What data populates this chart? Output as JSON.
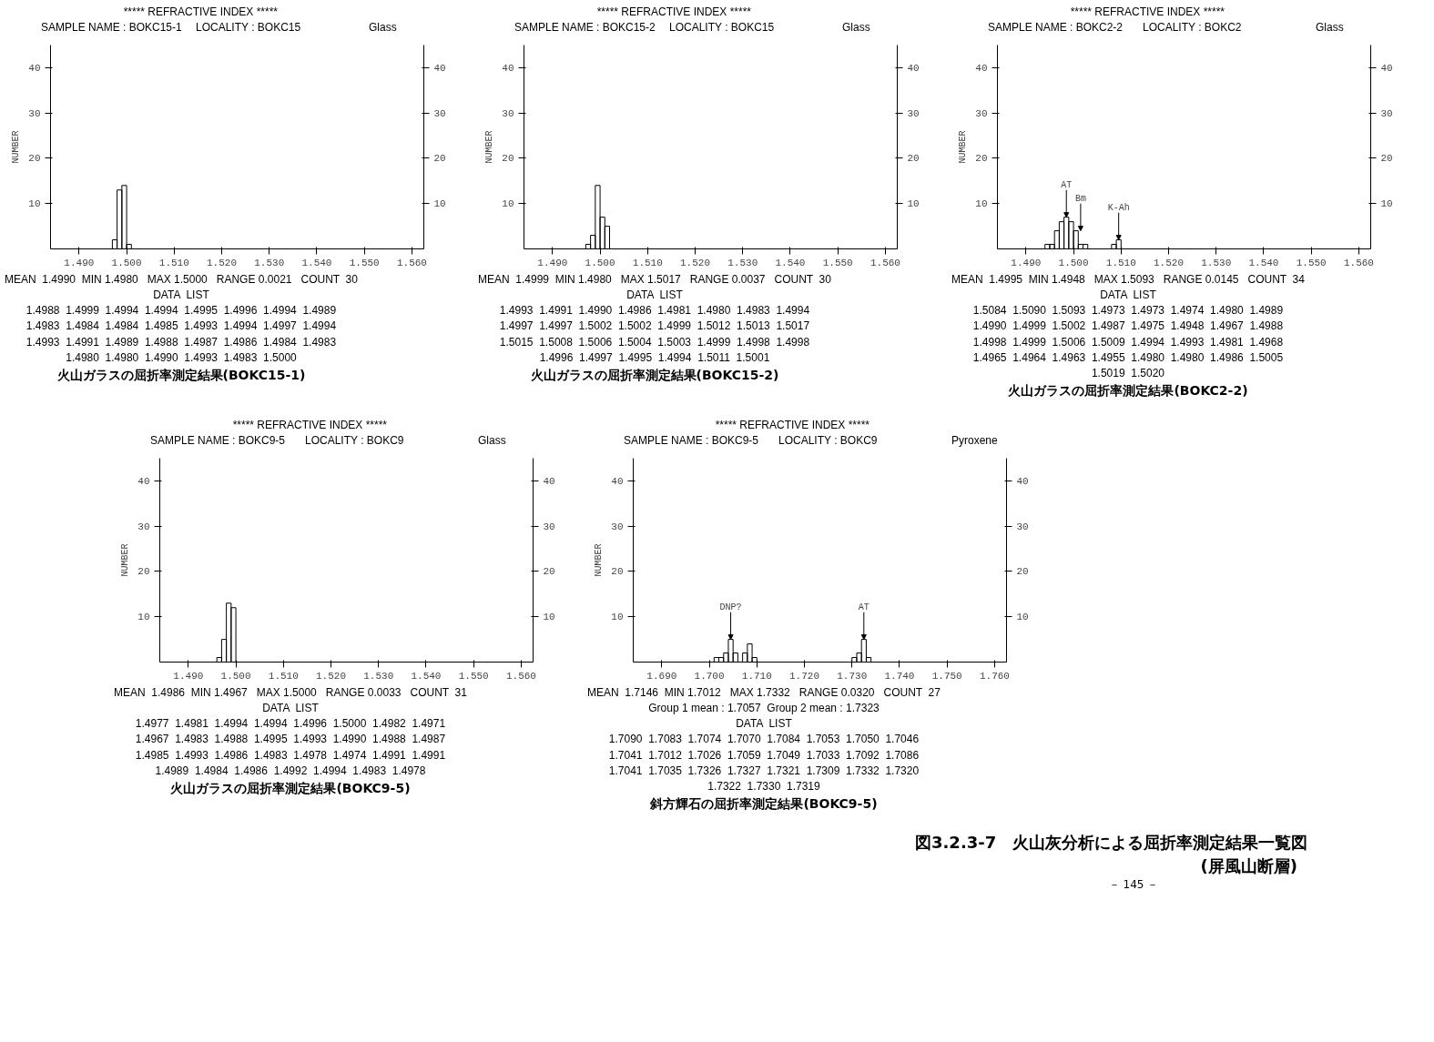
{
  "chart_data": [
    {
      "type": "histogram",
      "title": "***** REFRACTIVE INDEX *****",
      "ylabel": "NUMBER",
      "color": "#000000",
      "bins": [
        1.497,
        1.498,
        1.499,
        1.5,
        1.501
      ],
      "values": [
        2,
        13,
        14,
        1
      ],
      "xlim": [
        1.484,
        1.5625
      ],
      "xticks": [
        {
          "value": 1.49,
          "label": "1.490"
        },
        {
          "value": 1.5,
          "label": "1.500"
        },
        {
          "value": 1.51,
          "label": "1.510"
        },
        {
          "value": 1.52,
          "label": "1.520"
        },
        {
          "value": 1.53,
          "label": "1.530"
        },
        {
          "value": 1.54,
          "label": "1.540"
        },
        {
          "value": 1.55,
          "label": "1.550"
        },
        {
          "value": 1.56,
          "label": "1.560"
        }
      ],
      "ylim": [
        0,
        45
      ],
      "yticks": [
        10,
        20,
        30,
        40
      ],
      "y2lim": [
        0,
        45
      ],
      "y2ticks": [
        10,
        20,
        30,
        40
      ],
      "annotations": [
        "SAMPLE NAME : BOKC15-1",
        "LOCALITY : BOKC15",
        "Glass",
        "MEAN  1.4990  MIN 1.4980   MAX 1.5000   RANGE 0.0021   COUNT  30",
        "DATA  LIST",
        "1.4988  1.4999  1.4994  1.4994  1.4995  1.4996  1.4994  1.4989",
        "1.4983  1.4984  1.4984  1.4985  1.4993  1.4994  1.4997  1.4994",
        "1.4993  1.4991  1.4989  1.4988  1.4987  1.4986  1.4984  1.4983",
        "1.4980  1.4980  1.4990  1.4993  1.4983  1.5000",
        "火山ガラスの屈折率測定結果(BOKC15-1)"
      ]
    },
    {
      "type": "histogram",
      "title": "***** REFRACTIVE INDEX *****",
      "ylabel": "NUMBER",
      "color": "#000000",
      "bins": [
        1.497,
        1.498,
        1.499,
        1.5,
        1.501,
        1.502
      ],
      "values": [
        1,
        3,
        14,
        7,
        5
      ],
      "xlim": [
        1.484,
        1.5625
      ],
      "xticks": [
        {
          "value": 1.49,
          "label": "1.490"
        },
        {
          "value": 1.5,
          "label": "1.500"
        },
        {
          "value": 1.51,
          "label": "1.510"
        },
        {
          "value": 1.52,
          "label": "1.520"
        },
        {
          "value": 1.53,
          "label": "1.530"
        },
        {
          "value": 1.54,
          "label": "1.540"
        },
        {
          "value": 1.55,
          "label": "1.550"
        },
        {
          "value": 1.56,
          "label": "1.560"
        }
      ],
      "ylim": [
        0,
        45
      ],
      "yticks": [
        10,
        20,
        30,
        40
      ],
      "y2lim": [
        0,
        45
      ],
      "y2ticks": [
        10,
        20,
        30,
        40
      ],
      "annotations": [
        "SAMPLE NAME : BOKC15-2",
        "LOCALITY : BOKC15",
        "Glass",
        "MEAN  1.4999  MIN 1.4980   MAX 1.5017   RANGE 0.0037   COUNT  30",
        "DATA  LIST",
        "1.4993  1.4991  1.4990  1.4986  1.4981  1.4980  1.4983  1.4994",
        "1.4997  1.4997  1.5002  1.5002  1.4999  1.5012  1.5013  1.5017",
        "1.5015  1.5008  1.5006  1.5004  1.5003  1.4999  1.4998  1.4998",
        "1.4996  1.4997  1.4995  1.4994  1.5011  1.5001",
        "火山ガラスの屈折率測定結果(BOKC15-2)"
      ]
    },
    {
      "type": "histogram",
      "title": "***** REFRACTIVE INDEX *****",
      "ylabel": "NUMBER",
      "color": "#000000",
      "bins": [
        1.494,
        1.495,
        1.496,
        1.497,
        1.498,
        1.499,
        1.5,
        1.501,
        1.502,
        1.503,
        1.504,
        1.505,
        1.506,
        1.507,
        1.508,
        1.509,
        1.51
      ],
      "values": [
        1,
        1,
        4,
        6,
        7,
        6,
        4,
        1,
        1,
        0,
        0,
        0,
        0,
        0,
        1,
        2
      ],
      "xlim": [
        1.484,
        1.5625
      ],
      "xticks": [
        {
          "value": 1.49,
          "label": "1.490"
        },
        {
          "value": 1.5,
          "label": "1.500"
        },
        {
          "value": 1.51,
          "label": "1.510"
        },
        {
          "value": 1.52,
          "label": "1.520"
        },
        {
          "value": 1.53,
          "label": "1.530"
        },
        {
          "value": 1.54,
          "label": "1.540"
        },
        {
          "value": 1.55,
          "label": "1.550"
        },
        {
          "value": 1.56,
          "label": "1.560"
        }
      ],
      "ylim": [
        0,
        45
      ],
      "yticks": [
        10,
        20,
        30,
        40
      ],
      "y2lim": [
        0,
        45
      ],
      "y2ticks": [
        10,
        20,
        30,
        40
      ],
      "annotations": [
        "SAMPLE NAME : BOKC2-2",
        "LOCALITY : BOKC2",
        "Glass",
        {
          "text": "AT",
          "x": 1.4985,
          "y": 7
        },
        {
          "text": "Bm",
          "x": 1.5015,
          "y": 4
        },
        {
          "text": "K-Ah",
          "x": 1.5095,
          "y": 2
        },
        "MEAN  1.4995  MIN 1.4948   MAX 1.5093   RANGE 0.0145   COUNT  34",
        "DATA  LIST",
        "1.5084  1.5090  1.5093  1.4973  1.4973  1.4974  1.4980  1.4989",
        "1.4990  1.4999  1.5002  1.4987  1.4975  1.4948  1.4967  1.4988",
        "1.4998  1.4999  1.5006  1.5009  1.4994  1.4993  1.4981  1.4968",
        "1.4965  1.4964  1.4963  1.4955  1.4980  1.4980  1.4986  1.5005",
        "1.5019  1.5020",
        "火山ガラスの屈折率測定結果(BOKC2-2)"
      ]
    },
    {
      "type": "histogram",
      "title": "***** REFRACTIVE INDEX *****",
      "ylabel": "NUMBER",
      "color": "#000000",
      "bins": [
        1.496,
        1.497,
        1.498,
        1.499,
        1.5
      ],
      "values": [
        1,
        5,
        13,
        12
      ],
      "xlim": [
        1.484,
        1.5625
      ],
      "xticks": [
        {
          "value": 1.49,
          "label": "1.490"
        },
        {
          "value": 1.5,
          "label": "1.500"
        },
        {
          "value": 1.51,
          "label": "1.510"
        },
        {
          "value": 1.52,
          "label": "1.520"
        },
        {
          "value": 1.53,
          "label": "1.530"
        },
        {
          "value": 1.54,
          "label": "1.540"
        },
        {
          "value": 1.55,
          "label": "1.550"
        },
        {
          "value": 1.56,
          "label": "1.560"
        }
      ],
      "ylim": [
        0,
        45
      ],
      "yticks": [
        10,
        20,
        30,
        40
      ],
      "y2lim": [
        0,
        45
      ],
      "y2ticks": [
        10,
        20,
        30,
        40
      ],
      "annotations": [
        "SAMPLE NAME : BOKC9-5",
        "LOCALITY : BOKC9",
        "Glass",
        "MEAN  1.4986  MIN 1.4967   MAX 1.5000   RANGE 0.0033   COUNT  31",
        "DATA  LIST",
        "1.4977  1.4981  1.4994  1.4994  1.4996  1.5000  1.4982  1.4971",
        "1.4967  1.4983  1.4988  1.4995  1.4993  1.4990  1.4988  1.4987",
        "1.4985  1.4993  1.4986  1.4983  1.4978  1.4974  1.4991  1.4991",
        "1.4989  1.4984  1.4986  1.4992  1.4994  1.4983  1.4978",
        "火山ガラスの屈折率測定結果(BOKC9-5)"
      ]
    },
    {
      "type": "histogram",
      "title": "***** REFRACTIVE INDEX *****",
      "ylabel": "NUMBER",
      "color": "#000000",
      "bins": [
        1.701,
        1.702,
        1.703,
        1.704,
        1.705,
        1.706,
        1.707,
        1.708,
        1.709,
        1.71,
        1.711,
        1.712,
        1.713,
        1.714,
        1.715,
        1.716,
        1.717,
        1.718,
        1.719,
        1.72,
        1.721,
        1.722,
        1.723,
        1.724,
        1.725,
        1.726,
        1.727,
        1.728,
        1.729,
        1.73,
        1.731,
        1.732,
        1.733,
        1.734
      ],
      "values": [
        1,
        1,
        2,
        5,
        2,
        0,
        2,
        4,
        1,
        0,
        0,
        0,
        0,
        0,
        0,
        0,
        0,
        0,
        0,
        0,
        0,
        0,
        0,
        0,
        0,
        0,
        0,
        0,
        0,
        1,
        2,
        5,
        1
      ],
      "xlim": [
        1.684,
        1.7625
      ],
      "xticks": [
        {
          "value": 1.69,
          "label": "1.690"
        },
        {
          "value": 1.7,
          "label": "1.700"
        },
        {
          "value": 1.71,
          "label": "1.710"
        },
        {
          "value": 1.72,
          "label": "1.720"
        },
        {
          "value": 1.73,
          "label": "1.730"
        },
        {
          "value": 1.74,
          "label": "1.740"
        },
        {
          "value": 1.75,
          "label": "1.750"
        },
        {
          "value": 1.76,
          "label": "1.760"
        }
      ],
      "ylim": [
        0,
        45
      ],
      "yticks": [
        10,
        20,
        30,
        40
      ],
      "y2lim": [
        0,
        45
      ],
      "y2ticks": [
        10,
        20,
        30,
        40
      ],
      "annotations": [
        "SAMPLE NAME : BOKC9-5",
        "LOCALITY : BOKC9",
        "Pyroxene",
        {
          "text": "DNP?",
          "x": 1.7045,
          "y": 5
        },
        {
          "text": "AT",
          "x": 1.7325,
          "y": 5
        },
        "MEAN  1.7146  MIN 1.7012   MAX 1.7332   RANGE 0.0320   COUNT  27",
        "Group 1 mean : 1.7057  Group 2 mean : 1.7323",
        "DATA  LIST",
        "1.7090  1.7083  1.7074  1.7070  1.7084  1.7053  1.7050  1.7046",
        "1.7041  1.7012  1.7026  1.7059  1.7049  1.7033  1.7092  1.7086",
        "1.7041  1.7035  1.7326  1.7327  1.7321  1.7309  1.7332  1.7320",
        "1.7322  1.7330  1.7319",
        "斜方輝石の屈折率測定結果(BOKC9-5)"
      ]
    },
    {
      "type": "other",
      "title": "図3.2.3-7　火山灰分析による屈折率測定結果一覧図",
      "subtitle": "(屏風山断層)",
      "annotations": [
        "－ 145 －"
      ]
    }
  ]
}
